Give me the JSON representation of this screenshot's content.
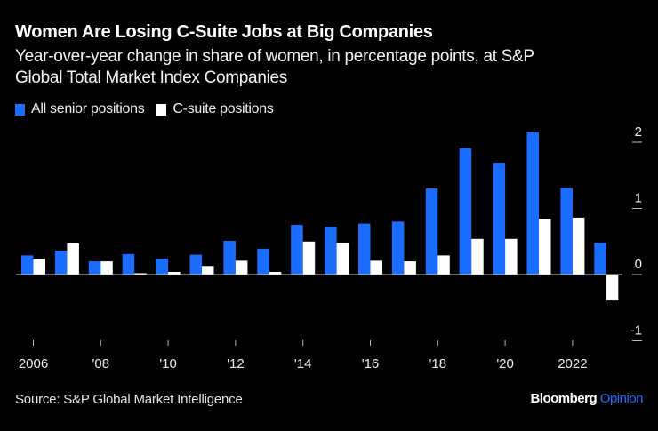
{
  "header": {
    "title": "Women Are Losing C-Suite Jobs at Big Companies",
    "subtitle": "Year-over-year change in share of women, in percentage points, at S&P Global Total Market Index Companies"
  },
  "footer": {
    "source": "Source: S&P Global Market Intelligence",
    "brand_main": "Bloomberg",
    "brand_accent": "Opinion"
  },
  "colors": {
    "background": "#000000",
    "all_senior": "#1a6dff",
    "c_suite": "#ffffff"
  },
  "chart_data": {
    "type": "bar",
    "title": "Women Are Losing C-Suite Jobs at Big Companies",
    "subtitle": "Year-over-year change in share of women, in percentage points, at S&P Global Total Market Index Companies",
    "xlabel": "",
    "ylabel": "",
    "categories": [
      2006,
      2007,
      2008,
      2009,
      2010,
      2011,
      2012,
      2013,
      2014,
      2015,
      2016,
      2017,
      2018,
      2019,
      2020,
      2021,
      2022,
      2023
    ],
    "x_tick_labels": [
      {
        "year": 2006,
        "label": "2006"
      },
      {
        "year": 2008,
        "label": "'08"
      },
      {
        "year": 2010,
        "label": "'10"
      },
      {
        "year": 2012,
        "label": "'12"
      },
      {
        "year": 2014,
        "label": "'14"
      },
      {
        "year": 2016,
        "label": "'16"
      },
      {
        "year": 2018,
        "label": "'18"
      },
      {
        "year": 2020,
        "label": "'20"
      },
      {
        "year": 2022,
        "label": "2022"
      }
    ],
    "series": [
      {
        "name": "All senior positions",
        "color": "#1a6dff",
        "values": [
          0.29,
          0.36,
          0.2,
          0.31,
          0.24,
          0.3,
          0.51,
          0.39,
          0.75,
          0.72,
          0.77,
          0.8,
          1.3,
          1.91,
          1.69,
          2.15,
          1.31,
          0.48
        ]
      },
      {
        "name": "C-suite positions",
        "color": "#ffffff",
        "values": [
          0.24,
          0.47,
          0.2,
          0.02,
          0.04,
          0.13,
          0.21,
          0.04,
          0.5,
          0.48,
          0.21,
          0.2,
          0.29,
          0.54,
          0.54,
          0.84,
          0.86,
          -0.39
        ]
      }
    ],
    "y_ticks": [
      2,
      1,
      0,
      -1
    ],
    "ylim": [
      -1,
      2
    ],
    "y_axis_side": "right",
    "grid": false,
    "legend_position": "top-left"
  }
}
